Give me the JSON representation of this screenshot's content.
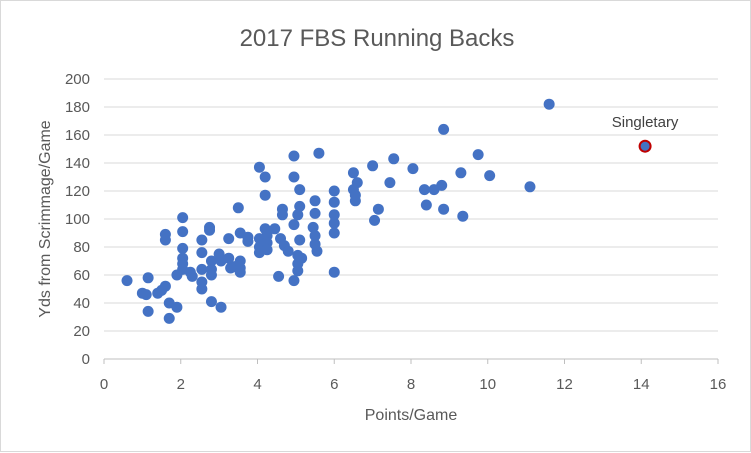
{
  "colors": {
    "point": "#4472c4",
    "highlight_fill": "#4472c4",
    "highlight_stroke": "#c00000",
    "grid": "#d9d9d9",
    "axis": "#bfbfbf",
    "text": "#595959"
  },
  "chart_data": {
    "type": "scatter",
    "title": "2017 FBS Running Backs",
    "xlabel": "Points/Game",
    "ylabel": "Yds from Scrimmage/Game",
    "xlim": [
      0,
      16
    ],
    "ylim": [
      0,
      200
    ],
    "x_ticks": [
      0,
      2,
      4,
      6,
      8,
      10,
      12,
      14,
      16
    ],
    "y_ticks": [
      0,
      20,
      40,
      60,
      80,
      100,
      120,
      140,
      160,
      180,
      200
    ],
    "grid": "horizontal",
    "legend": "none",
    "series": [
      {
        "points": [
          [
            0.6,
            56
          ],
          [
            1.0,
            47
          ],
          [
            1.1,
            46
          ],
          [
            1.15,
            58
          ],
          [
            1.15,
            34
          ],
          [
            1.4,
            47
          ],
          [
            1.5,
            49
          ],
          [
            1.6,
            52
          ],
          [
            1.6,
            89
          ],
          [
            1.6,
            85
          ],
          [
            1.7,
            29
          ],
          [
            1.7,
            40
          ],
          [
            1.9,
            60
          ],
          [
            1.9,
            37
          ],
          [
            2.05,
            101
          ],
          [
            2.05,
            91
          ],
          [
            2.05,
            79
          ],
          [
            2.05,
            72
          ],
          [
            2.05,
            68
          ],
          [
            2.05,
            64
          ],
          [
            2.25,
            62
          ],
          [
            2.3,
            59
          ],
          [
            2.55,
            85
          ],
          [
            2.55,
            76
          ],
          [
            2.55,
            64
          ],
          [
            2.55,
            55
          ],
          [
            2.55,
            50
          ],
          [
            2.75,
            94
          ],
          [
            2.75,
            92
          ],
          [
            2.8,
            70
          ],
          [
            2.8,
            64
          ],
          [
            2.8,
            60
          ],
          [
            2.8,
            41
          ],
          [
            3.0,
            75
          ],
          [
            3.05,
            70
          ],
          [
            3.05,
            37
          ],
          [
            3.25,
            86
          ],
          [
            3.25,
            72
          ],
          [
            3.3,
            65
          ],
          [
            3.4,
            66
          ],
          [
            3.5,
            108
          ],
          [
            3.55,
            90
          ],
          [
            3.55,
            70
          ],
          [
            3.55,
            65
          ],
          [
            3.55,
            62
          ],
          [
            3.75,
            87
          ],
          [
            3.75,
            84
          ],
          [
            4.05,
            137
          ],
          [
            4.05,
            86
          ],
          [
            4.05,
            80
          ],
          [
            4.05,
            76
          ],
          [
            4.2,
            130
          ],
          [
            4.2,
            117
          ],
          [
            4.2,
            93
          ],
          [
            4.25,
            88
          ],
          [
            4.25,
            83
          ],
          [
            4.25,
            78
          ],
          [
            4.45,
            93
          ],
          [
            4.55,
            59
          ],
          [
            4.6,
            86
          ],
          [
            4.65,
            107
          ],
          [
            4.65,
            103
          ],
          [
            4.7,
            81
          ],
          [
            4.8,
            77
          ],
          [
            4.95,
            145
          ],
          [
            4.95,
            130
          ],
          [
            4.95,
            96
          ],
          [
            4.95,
            56
          ],
          [
            5.05,
            103
          ],
          [
            5.05,
            74
          ],
          [
            5.05,
            68
          ],
          [
            5.05,
            63
          ],
          [
            5.1,
            121
          ],
          [
            5.1,
            109
          ],
          [
            5.1,
            85
          ],
          [
            5.15,
            72
          ],
          [
            5.45,
            94
          ],
          [
            5.5,
            113
          ],
          [
            5.5,
            104
          ],
          [
            5.5,
            88
          ],
          [
            5.5,
            82
          ],
          [
            5.55,
            77
          ],
          [
            5.6,
            147
          ],
          [
            6.0,
            120
          ],
          [
            6.0,
            112
          ],
          [
            6.0,
            103
          ],
          [
            6.0,
            97
          ],
          [
            6.0,
            90
          ],
          [
            6.0,
            62
          ],
          [
            6.5,
            133
          ],
          [
            6.5,
            121
          ],
          [
            6.55,
            117
          ],
          [
            6.55,
            113
          ],
          [
            6.6,
            126
          ],
          [
            7.0,
            138
          ],
          [
            7.05,
            99
          ],
          [
            7.15,
            107
          ],
          [
            7.45,
            126
          ],
          [
            7.55,
            143
          ],
          [
            8.05,
            136
          ],
          [
            8.35,
            121
          ],
          [
            8.4,
            110
          ],
          [
            8.6,
            121
          ],
          [
            8.8,
            124
          ],
          [
            8.85,
            164
          ],
          [
            8.85,
            107
          ],
          [
            9.3,
            133
          ],
          [
            9.35,
            102
          ],
          [
            9.75,
            146
          ],
          [
            10.05,
            131
          ],
          [
            11.1,
            123
          ],
          [
            11.6,
            182
          ]
        ]
      }
    ],
    "highlight": {
      "label": "Singletary",
      "x": 14.1,
      "y": 152
    }
  }
}
